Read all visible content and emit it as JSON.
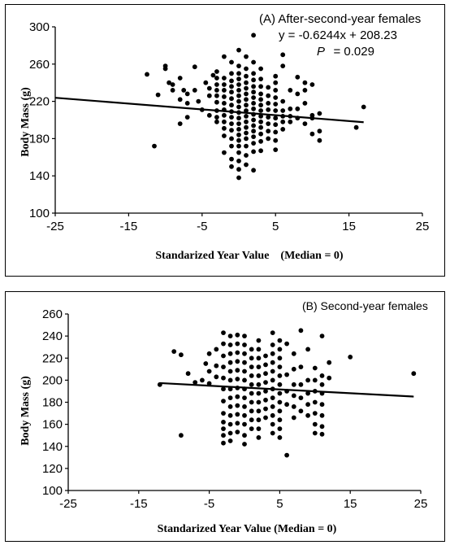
{
  "chart_data": [
    {
      "type": "scatter",
      "title": "(A) After-second-year females",
      "xlabel": "Standarized Year Value    (Median = 0)",
      "ylabel": "Body Mass (g)",
      "xlim": [
        -25,
        25
      ],
      "ylim": [
        100,
        300
      ],
      "xticks": [
        -25,
        -15,
        -5,
        5,
        15,
        25
      ],
      "yticks": [
        100,
        140,
        180,
        220,
        260,
        300
      ],
      "equation": "y = -0.6244x + 208.23",
      "p_label": "P",
      "p_value": "= 0.029",
      "trendline": {
        "slope": -0.6244,
        "intercept": 208.23,
        "x_range": [
          -25,
          17
        ]
      },
      "points": [
        [
          -12.5,
          249
        ],
        [
          -11.5,
          172
        ],
        [
          -11,
          227
        ],
        [
          -10,
          258
        ],
        [
          -10,
          255
        ],
        [
          -9.5,
          240
        ],
        [
          -9,
          238
        ],
        [
          -9,
          232
        ],
        [
          -8,
          245
        ],
        [
          -8,
          222
        ],
        [
          -8,
          196
        ],
        [
          -7.5,
          232
        ],
        [
          -7,
          228
        ],
        [
          -7,
          218
        ],
        [
          -7,
          203
        ],
        [
          -6,
          257
        ],
        [
          -6,
          232
        ],
        [
          -5.5,
          220
        ],
        [
          -5,
          211
        ],
        [
          -4.5,
          240
        ],
        [
          -4,
          234
        ],
        [
          -4,
          226
        ],
        [
          -4,
          205
        ],
        [
          -3.5,
          248
        ],
        [
          -3,
          245
        ],
        [
          -3,
          252
        ],
        [
          -3,
          238
        ],
        [
          -3,
          232
        ],
        [
          -3,
          226
        ],
        [
          -3,
          219
        ],
        [
          -3,
          210
        ],
        [
          -3,
          203
        ],
        [
          -3,
          198
        ],
        [
          -2,
          268
        ],
        [
          -2,
          245
        ],
        [
          -2,
          238
        ],
        [
          -2,
          232
        ],
        [
          -2,
          225
        ],
        [
          -2,
          218
        ],
        [
          -2,
          211
        ],
        [
          -2,
          205
        ],
        [
          -2,
          198
        ],
        [
          -2,
          191
        ],
        [
          -2,
          183
        ],
        [
          -2,
          165
        ],
        [
          -1,
          262
        ],
        [
          -1,
          250
        ],
        [
          -1,
          242
        ],
        [
          -1,
          236
        ],
        [
          -1,
          230
        ],
        [
          -1,
          223
        ],
        [
          -1,
          216
        ],
        [
          -1,
          209
        ],
        [
          -1,
          203
        ],
        [
          -1,
          196
        ],
        [
          -1,
          189
        ],
        [
          -1,
          180
        ],
        [
          -1,
          172
        ],
        [
          -1,
          158
        ],
        [
          -1,
          150
        ],
        [
          0,
          275
        ],
        [
          0,
          258
        ],
        [
          0,
          250
        ],
        [
          0,
          244
        ],
        [
          0,
          238
        ],
        [
          0,
          232
        ],
        [
          0,
          226
        ],
        [
          0,
          220
        ],
        [
          0,
          214
        ],
        [
          0,
          208
        ],
        [
          0,
          202
        ],
        [
          0,
          196
        ],
        [
          0,
          190
        ],
        [
          0,
          184
        ],
        [
          0,
          178
        ],
        [
          0,
          172
        ],
        [
          0,
          165
        ],
        [
          0,
          156
        ],
        [
          0,
          147
        ],
        [
          0,
          138
        ],
        [
          1,
          268
        ],
        [
          1,
          255
        ],
        [
          1,
          247
        ],
        [
          1,
          240
        ],
        [
          1,
          234
        ],
        [
          1,
          228
        ],
        [
          1,
          222
        ],
        [
          1,
          216
        ],
        [
          1,
          210
        ],
        [
          1,
          204
        ],
        [
          1,
          198
        ],
        [
          1,
          192
        ],
        [
          1,
          186
        ],
        [
          1,
          180
        ],
        [
          1,
          172
        ],
        [
          1,
          162
        ],
        [
          1,
          152
        ],
        [
          2,
          291
        ],
        [
          2,
          262
        ],
        [
          2,
          250
        ],
        [
          2,
          243
        ],
        [
          2,
          236
        ],
        [
          2,
          230
        ],
        [
          2,
          224
        ],
        [
          2,
          218
        ],
        [
          2,
          212
        ],
        [
          2,
          206
        ],
        [
          2,
          200
        ],
        [
          2,
          194
        ],
        [
          2,
          188
        ],
        [
          2,
          182
        ],
        [
          2,
          175
        ],
        [
          2,
          166
        ],
        [
          2,
          146
        ],
        [
          3,
          255
        ],
        [
          3,
          244
        ],
        [
          3,
          236
        ],
        [
          3,
          228
        ],
        [
          3,
          222
        ],
        [
          3,
          216
        ],
        [
          3,
          210
        ],
        [
          3,
          204
        ],
        [
          3,
          198
        ],
        [
          3,
          192
        ],
        [
          3,
          185
        ],
        [
          3,
          177
        ],
        [
          3,
          167
        ],
        [
          4,
          235
        ],
        [
          4,
          226
        ],
        [
          4,
          218
        ],
        [
          4,
          211
        ],
        [
          4,
          203
        ],
        [
          4,
          196
        ],
        [
          4,
          188
        ],
        [
          4,
          180
        ],
        [
          5,
          247
        ],
        [
          5,
          240
        ],
        [
          5,
          232
        ],
        [
          5,
          224
        ],
        [
          5,
          217
        ],
        [
          5,
          210
        ],
        [
          5,
          202
        ],
        [
          5,
          195
        ],
        [
          5,
          187
        ],
        [
          5,
          178
        ],
        [
          5,
          168
        ],
        [
          6,
          270
        ],
        [
          6,
          258
        ],
        [
          6,
          220
        ],
        [
          6,
          210
        ],
        [
          6,
          204
        ],
        [
          6,
          198
        ],
        [
          6,
          190
        ],
        [
          7,
          232
        ],
        [
          7,
          212
        ],
        [
          7,
          204
        ],
        [
          7,
          198
        ],
        [
          8,
          246
        ],
        [
          8,
          228
        ],
        [
          8,
          212
        ],
        [
          8,
          202
        ],
        [
          9,
          240
        ],
        [
          9,
          232
        ],
        [
          9,
          218
        ],
        [
          9,
          196
        ],
        [
          10,
          238
        ],
        [
          10,
          205
        ],
        [
          10,
          202
        ],
        [
          10,
          185
        ],
        [
          11,
          207
        ],
        [
          11,
          188
        ],
        [
          11,
          178
        ],
        [
          16,
          192
        ],
        [
          17,
          214
        ]
      ]
    },
    {
      "type": "scatter",
      "title": "(B) Second-year females",
      "xlabel": "Standarized Year Value (Median = 0)",
      "ylabel": "Body Mass (g)",
      "xlim": [
        -25,
        25
      ],
      "ylim": [
        100,
        260
      ],
      "xticks": [
        -25,
        -15,
        -5,
        5,
        15,
        25
      ],
      "yticks": [
        100,
        120,
        140,
        160,
        180,
        200,
        220,
        240,
        260
      ],
      "trendline": {
        "slope": -0.34,
        "intercept": 193.3,
        "x_range": [
          -12,
          24
        ]
      },
      "points": [
        [
          -12,
          196
        ],
        [
          -10,
          226
        ],
        [
          -9,
          223
        ],
        [
          -9,
          150
        ],
        [
          -8,
          206
        ],
        [
          -7,
          198
        ],
        [
          -6,
          200
        ],
        [
          -5.5,
          215
        ],
        [
          -5,
          224
        ],
        [
          -5,
          208
        ],
        [
          -5,
          197
        ],
        [
          -4,
          203
        ],
        [
          -4,
          213
        ],
        [
          -4,
          228
        ],
        [
          -3,
          243
        ],
        [
          -3,
          233
        ],
        [
          -3,
          222
        ],
        [
          -3,
          212
        ],
        [
          -3,
          202
        ],
        [
          -3,
          192
        ],
        [
          -3,
          181
        ],
        [
          -3,
          170
        ],
        [
          -3,
          162
        ],
        [
          -3,
          156
        ],
        [
          -3,
          150
        ],
        [
          -3,
          143
        ],
        [
          -2,
          240
        ],
        [
          -2,
          232
        ],
        [
          -2,
          224
        ],
        [
          -2,
          216
        ],
        [
          -2,
          208
        ],
        [
          -2,
          200
        ],
        [
          -2,
          192
        ],
        [
          -2,
          184
        ],
        [
          -2,
          176
        ],
        [
          -2,
          168
        ],
        [
          -2,
          160
        ],
        [
          -2,
          152
        ],
        [
          -2,
          145
        ],
        [
          -1,
          241
        ],
        [
          -1,
          233
        ],
        [
          -1,
          225
        ],
        [
          -1,
          217
        ],
        [
          -1,
          209
        ],
        [
          -1,
          201
        ],
        [
          -1,
          193
        ],
        [
          -1,
          185
        ],
        [
          -1,
          177
        ],
        [
          -1,
          169
        ],
        [
          -1,
          161
        ],
        [
          -1,
          153
        ],
        [
          0,
          240
        ],
        [
          0,
          232
        ],
        [
          0,
          224
        ],
        [
          0,
          216
        ],
        [
          0,
          208
        ],
        [
          0,
          200
        ],
        [
          0,
          192
        ],
        [
          0,
          184
        ],
        [
          0,
          176
        ],
        [
          0,
          168
        ],
        [
          0,
          160
        ],
        [
          0,
          150
        ],
        [
          0,
          142
        ],
        [
          1,
          228
        ],
        [
          1,
          220
        ],
        [
          1,
          212
        ],
        [
          1,
          204
        ],
        [
          1,
          196
        ],
        [
          1,
          188
        ],
        [
          1,
          180
        ],
        [
          1,
          172
        ],
        [
          1,
          164
        ],
        [
          1,
          156
        ],
        [
          2,
          236
        ],
        [
          2,
          228
        ],
        [
          2,
          220
        ],
        [
          2,
          212
        ],
        [
          2,
          204
        ],
        [
          2,
          196
        ],
        [
          2,
          188
        ],
        [
          2,
          180
        ],
        [
          2,
          172
        ],
        [
          2,
          164
        ],
        [
          2,
          156
        ],
        [
          2,
          148
        ],
        [
          3,
          222
        ],
        [
          3,
          214
        ],
        [
          3,
          206
        ],
        [
          3,
          198
        ],
        [
          3,
          190
        ],
        [
          3,
          182
        ],
        [
          3,
          174
        ],
        [
          3,
          166
        ],
        [
          4,
          243
        ],
        [
          4,
          232
        ],
        [
          4,
          224
        ],
        [
          4,
          216
        ],
        [
          4,
          208
        ],
        [
          4,
          200
        ],
        [
          4,
          192
        ],
        [
          4,
          184
        ],
        [
          4,
          176
        ],
        [
          4,
          168
        ],
        [
          4,
          160
        ],
        [
          4,
          152
        ],
        [
          5,
          236
        ],
        [
          5,
          228
        ],
        [
          5,
          220
        ],
        [
          5,
          212
        ],
        [
          5,
          204
        ],
        [
          5,
          196
        ],
        [
          5,
          188
        ],
        [
          5,
          180
        ],
        [
          5,
          172
        ],
        [
          5,
          164
        ],
        [
          5,
          156
        ],
        [
          5,
          148
        ],
        [
          6,
          233
        ],
        [
          6,
          205
        ],
        [
          6,
          190
        ],
        [
          6,
          178
        ],
        [
          6,
          132
        ],
        [
          7,
          224
        ],
        [
          7,
          210
        ],
        [
          7,
          196
        ],
        [
          7,
          186
        ],
        [
          7,
          176
        ],
        [
          7,
          166
        ],
        [
          8,
          245
        ],
        [
          8,
          212
        ],
        [
          8,
          196
        ],
        [
          8,
          184
        ],
        [
          8,
          172
        ],
        [
          9,
          228
        ],
        [
          9,
          200
        ],
        [
          9,
          188
        ],
        [
          9,
          178
        ],
        [
          9,
          168
        ],
        [
          10,
          211
        ],
        [
          10,
          200
        ],
        [
          10,
          190
        ],
        [
          10,
          180
        ],
        [
          10,
          170
        ],
        [
          10,
          160
        ],
        [
          10,
          152
        ],
        [
          11,
          240
        ],
        [
          11,
          204
        ],
        [
          11,
          196
        ],
        [
          11,
          188
        ],
        [
          11,
          178
        ],
        [
          11,
          168
        ],
        [
          11,
          158
        ],
        [
          11,
          151
        ],
        [
          12,
          216
        ],
        [
          12,
          202
        ],
        [
          15,
          221
        ],
        [
          24,
          206
        ]
      ]
    }
  ]
}
